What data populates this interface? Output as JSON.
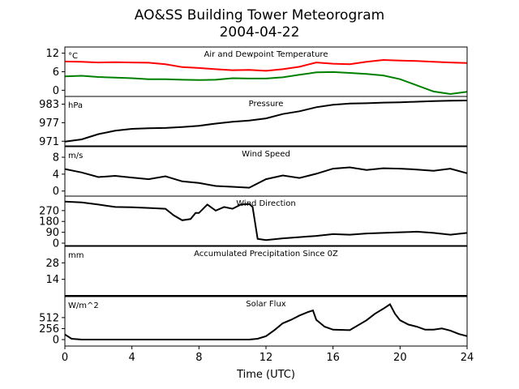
{
  "chart_data": {
    "type": "line",
    "title": "AO&SS Building Tower Meteorogram",
    "subtitle": "2004-04-22",
    "xlabel": "Time (UTC)",
    "xlim": [
      0,
      24
    ],
    "xticks": [
      0,
      4,
      8,
      12,
      16,
      20,
      24
    ],
    "panels": [
      {
        "title": "Air and Dewpoint Temperature",
        "unit": "°C",
        "ylim": [
          -2,
          14
        ],
        "yticks": [
          0,
          6,
          12
        ],
        "series": [
          {
            "color": "#ff0000",
            "x": [
              0,
              1,
              2,
              3,
              4,
              5,
              6,
              7,
              8,
              9,
              10,
              11,
              12,
              13,
              14,
              15,
              16,
              17,
              18,
              19,
              20,
              21,
              22,
              23,
              24
            ],
            "y": [
              9.3,
              9.2,
              9.0,
              9.1,
              9.0,
              8.9,
              8.4,
              7.5,
              7.2,
              6.8,
              6.5,
              6.6,
              6.3,
              6.8,
              7.6,
              9.0,
              8.6,
              8.4,
              9.2,
              9.8,
              9.6,
              9.5,
              9.2,
              9.0,
              8.8
            ]
          },
          {
            "color": "#008000",
            "x": [
              0,
              1,
              2,
              3,
              4,
              5,
              6,
              7,
              8,
              9,
              10,
              11,
              12,
              13,
              14,
              15,
              16,
              17,
              18,
              19,
              20,
              21,
              22,
              23,
              24
            ],
            "y": [
              4.5,
              4.7,
              4.3,
              4.1,
              3.9,
              3.6,
              3.6,
              3.4,
              3.3,
              3.4,
              3.9,
              3.8,
              3.8,
              4.2,
              5.0,
              5.8,
              5.9,
              5.6,
              5.3,
              4.8,
              3.6,
              1.6,
              -0.4,
              -1.2,
              -0.5
            ]
          }
        ]
      },
      {
        "title": "Pressure",
        "unit": "hPa",
        "ylim": [
          969.5,
          985.5
        ],
        "yticks": [
          971,
          977,
          983
        ],
        "series": [
          {
            "color": "#000000",
            "x": [
              0,
              1,
              2,
              3,
              4,
              5,
              6,
              7,
              8,
              9,
              10,
              11,
              12,
              13,
              14,
              15,
              16,
              17,
              18,
              19,
              20,
              21,
              22,
              23,
              24
            ],
            "y": [
              970.9,
              971.6,
              973.3,
              974.4,
              975.0,
              975.2,
              975.3,
              975.6,
              976.0,
              976.7,
              977.3,
              977.7,
              978.4,
              979.8,
              980.7,
              982.0,
              982.8,
              983.2,
              983.3,
              983.5,
              983.6,
              983.8,
              984.0,
              984.1,
              984.2
            ]
          }
        ]
      },
      {
        "title": "Wind Speed",
        "unit": "m/s",
        "ylim": [
          -1.2,
          10.5
        ],
        "yticks": [
          0,
          4,
          8
        ],
        "series": [
          {
            "color": "#000000",
            "x": [
              0,
              1,
              2,
              3,
              4,
              5,
              6,
              7,
              8,
              9,
              10,
              11,
              12,
              13,
              14,
              15,
              16,
              17,
              18,
              19,
              20,
              21,
              22,
              23,
              24
            ],
            "y": [
              5.2,
              4.4,
              3.3,
              3.6,
              3.2,
              2.8,
              3.5,
              2.3,
              1.9,
              1.2,
              1.0,
              0.8,
              2.8,
              3.7,
              3.1,
              4.1,
              5.3,
              5.6,
              5.0,
              5.4,
              5.3,
              5.1,
              4.8,
              5.3,
              4.2
            ]
          }
        ]
      },
      {
        "title": "Wind Direction",
        "unit": "",
        "ylim": [
          -20,
          390
        ],
        "yticks": [
          0,
          90,
          180,
          270
        ],
        "series": [
          {
            "color": "#000000",
            "x": [
              0,
              1,
              2,
              3,
              4,
              5,
              6,
              6.5,
              7,
              7.5,
              7.8,
              8,
              8.5,
              9,
              9.5,
              10,
              10.5,
              11,
              11.2,
              11.5,
              12,
              13,
              14,
              15,
              16,
              17,
              18,
              19,
              20,
              21,
              22,
              23,
              24
            ],
            "y": [
              345,
              338,
              320,
              300,
              298,
              292,
              285,
              230,
              190,
              200,
              250,
              250,
              320,
              270,
              300,
              285,
              320,
              325,
              300,
              35,
              25,
              40,
              50,
              60,
              75,
              70,
              80,
              85,
              90,
              95,
              85,
              70,
              85
            ]
          }
        ]
      },
      {
        "title": "Accumulated Precipitation Since 0Z",
        "unit": "mm",
        "ylim": [
          0,
          42
        ],
        "yticks": [
          14,
          28
        ],
        "series": [
          {
            "color": "#000000",
            "x": [
              0,
              24
            ],
            "y": [
              0,
              0
            ]
          }
        ]
      },
      {
        "title": "Solar Flux",
        "unit": "W/m^2",
        "ylim": [
          -150,
          1000
        ],
        "yticks": [
          0,
          256,
          512
        ],
        "series": [
          {
            "color": "#000000",
            "x": [
              0,
              0.4,
              1,
              2,
              4,
              6,
              8,
              10,
              11,
              11.5,
              12,
              12.5,
              13,
              13.5,
              14,
              14.5,
              14.8,
              15,
              15.5,
              16,
              17,
              18,
              18.5,
              19,
              19.4,
              19.7,
              20,
              20.5,
              21,
              21.5,
              22,
              22.5,
              23,
              23.5,
              24
            ],
            "y": [
              120,
              20,
              0,
              0,
              0,
              0,
              0,
              0,
              0,
              20,
              80,
              220,
              380,
              460,
              560,
              640,
              680,
              460,
              300,
              230,
              220,
              450,
              600,
              720,
              820,
              600,
              450,
              350,
              300,
              230,
              230,
              260,
              210,
              130,
              80
            ]
          }
        ]
      }
    ]
  }
}
